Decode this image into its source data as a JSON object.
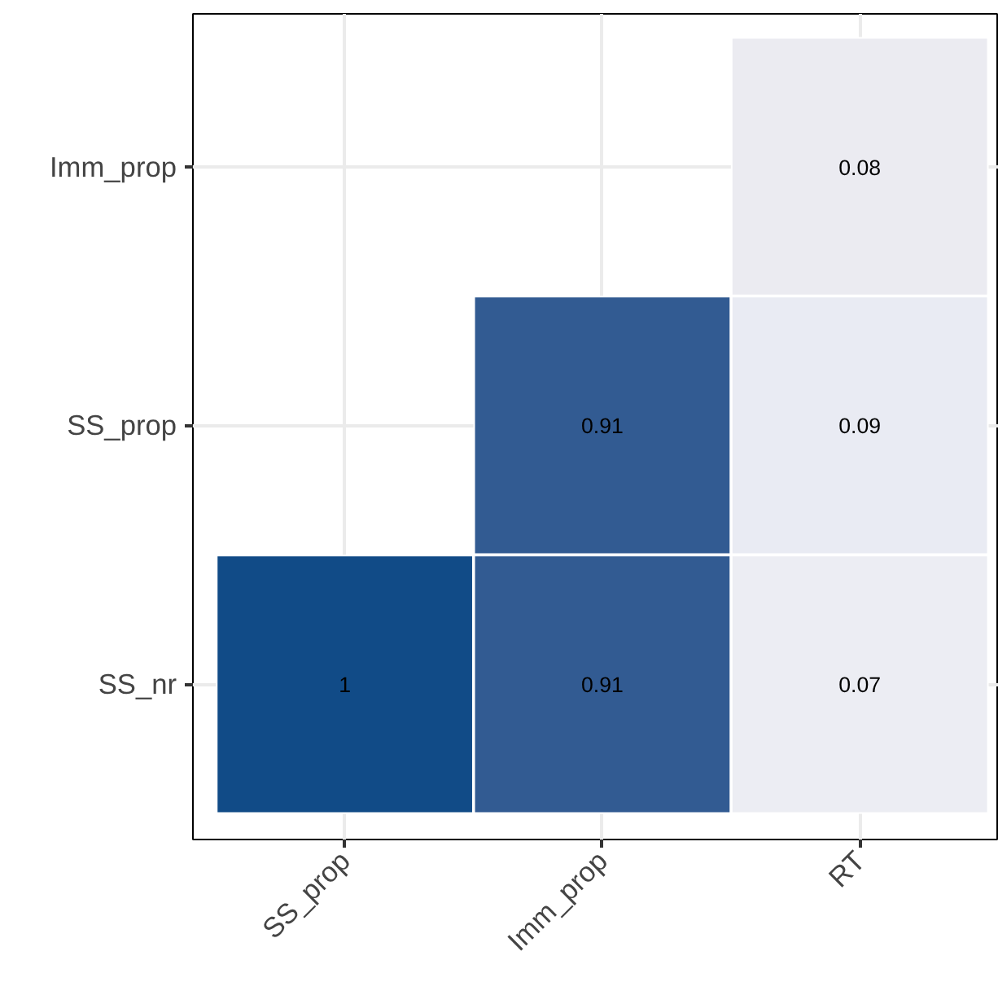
{
  "chart_data": {
    "type": "heatmap",
    "categories": [
      "SS_prop",
      "Imm_prop",
      "RT"
    ],
    "y_categories": [
      "Imm_prop",
      "SS_prop",
      "SS_nr"
    ],
    "cells": [
      [
        null,
        null,
        0.08
      ],
      [
        null,
        0.91,
        0.09
      ],
      [
        1,
        0.91,
        0.07
      ]
    ],
    "colors": [
      [
        null,
        null,
        "#ebebf1"
      ],
      [
        null,
        "#325b92",
        "#e9ebf3"
      ],
      [
        "#114b87",
        "#325b92",
        "#ecedf3"
      ]
    ],
    "data_labels": true,
    "grid": true
  }
}
